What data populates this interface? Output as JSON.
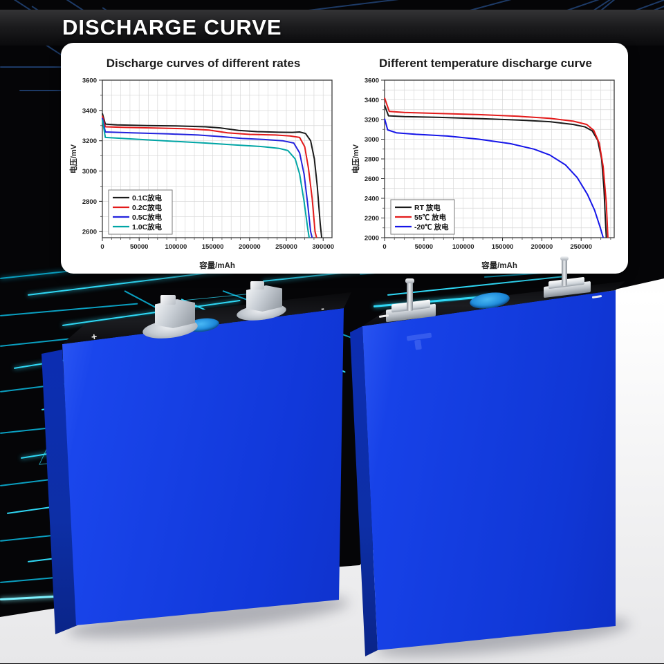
{
  "page_title": "DISCHARGE CURVE",
  "colors": {
    "accent_cyan": "#2fd8f5",
    "accent_navy": "#1d3a66",
    "panel_bg": "#ffffff",
    "battery_blue": "#1742e8",
    "battery_top_black": "#121316",
    "fill_port_blue": "#1e8ada",
    "floor_white": "#f4f4f6"
  },
  "batteries": {
    "left": {
      "plus_label": "+",
      "minus_label": "-"
    },
    "right": {
      "polarity_marks": "dashes"
    }
  },
  "chart_data": [
    {
      "type": "line",
      "title": "Discharge curves of different rates",
      "xlabel": "容量/mAh",
      "ylabel": "电压/mV",
      "xlim": [
        0,
        312000
      ],
      "ylim": [
        2560,
        3600
      ],
      "xticks": [
        0,
        50000,
        100000,
        150000,
        200000,
        250000,
        300000
      ],
      "yticks": [
        2600,
        2800,
        3000,
        3200,
        3400,
        3600
      ],
      "grid": {
        "x_step": 12500,
        "y_step": 100,
        "on": true
      },
      "legend_position": "bottom-left",
      "series": [
        {
          "name": "0.1C放电",
          "color": "#1a1a1a",
          "points": [
            [
              0,
              3380
            ],
            [
              4000,
              3310
            ],
            [
              20000,
              3305
            ],
            [
              60000,
              3300
            ],
            [
              100000,
              3298
            ],
            [
              140000,
              3292
            ],
            [
              160000,
              3285
            ],
            [
              185000,
              3268
            ],
            [
              210000,
              3260
            ],
            [
              240000,
              3256
            ],
            [
              258000,
              3255
            ],
            [
              268000,
              3258
            ],
            [
              276000,
              3248
            ],
            [
              283000,
              3200
            ],
            [
              288000,
              3080
            ],
            [
              292000,
              2900
            ],
            [
              296000,
              2650
            ],
            [
              298000,
              2560
            ]
          ]
        },
        {
          "name": "0.2C放电",
          "color": "#e31a1a",
          "points": [
            [
              0,
              3365
            ],
            [
              4000,
              3292
            ],
            [
              30000,
              3288
            ],
            [
              70000,
              3284
            ],
            [
              110000,
              3280
            ],
            [
              145000,
              3270
            ],
            [
              170000,
              3252
            ],
            [
              200000,
              3242
            ],
            [
              235000,
              3238
            ],
            [
              255000,
              3232
            ],
            [
              268000,
              3222
            ],
            [
              275000,
              3160
            ],
            [
              280000,
              3020
            ],
            [
              285000,
              2820
            ],
            [
              289000,
              2600
            ],
            [
              291000,
              2560
            ]
          ]
        },
        {
          "name": "0.5C放电",
          "color": "#2222dd",
          "points": [
            [
              0,
              3350
            ],
            [
              4000,
              3258
            ],
            [
              40000,
              3252
            ],
            [
              90000,
              3245
            ],
            [
              130000,
              3238
            ],
            [
              160000,
              3228
            ],
            [
              190000,
              3215
            ],
            [
              220000,
              3208
            ],
            [
              245000,
              3200
            ],
            [
              260000,
              3185
            ],
            [
              268000,
              3120
            ],
            [
              274000,
              2980
            ],
            [
              279000,
              2780
            ],
            [
              283000,
              2600
            ],
            [
              285000,
              2560
            ]
          ]
        },
        {
          "name": "1.0C放电",
          "color": "#00a5a5",
          "points": [
            [
              0,
              3340
            ],
            [
              4000,
              3222
            ],
            [
              40000,
              3212
            ],
            [
              90000,
              3198
            ],
            [
              140000,
              3185
            ],
            [
              180000,
              3172
            ],
            [
              215000,
              3162
            ],
            [
              240000,
              3150
            ],
            [
              252000,
              3135
            ],
            [
              262000,
              3080
            ],
            [
              268000,
              2980
            ],
            [
              274000,
              2800
            ],
            [
              279000,
              2620
            ],
            [
              281000,
              2560
            ]
          ]
        }
      ]
    },
    {
      "type": "line",
      "title": "Different temperature discharge curve",
      "xlabel": "容量/mAh",
      "ylabel": "电压/mV",
      "xlim": [
        0,
        292000
      ],
      "ylim": [
        2000,
        3600
      ],
      "xticks": [
        0,
        50000,
        100000,
        150000,
        200000,
        250000
      ],
      "yticks": [
        2000,
        2200,
        2400,
        2600,
        2800,
        3000,
        3200,
        3400,
        3600
      ],
      "grid": {
        "x_step": 12500,
        "y_step": 100,
        "on": true
      },
      "legend_position": "bottom-left",
      "series": [
        {
          "name": "RT 放电",
          "color": "#1a1a1a",
          "points": [
            [
              0,
              3345
            ],
            [
              5000,
              3238
            ],
            [
              25000,
              3230
            ],
            [
              70000,
              3222
            ],
            [
              120000,
              3210
            ],
            [
              170000,
              3195
            ],
            [
              210000,
              3178
            ],
            [
              240000,
              3150
            ],
            [
              255000,
              3125
            ],
            [
              264000,
              3085
            ],
            [
              271000,
              2990
            ],
            [
              276000,
              2800
            ],
            [
              279000,
              2500
            ],
            [
              281000,
              2150
            ],
            [
              282000,
              2000
            ]
          ]
        },
        {
          "name": "55℃ 放电",
          "color": "#e31a1a",
          "points": [
            [
              0,
              3420
            ],
            [
              6000,
              3282
            ],
            [
              25000,
              3272
            ],
            [
              70000,
              3262
            ],
            [
              120000,
              3250
            ],
            [
              170000,
              3233
            ],
            [
              210000,
              3212
            ],
            [
              240000,
              3183
            ],
            [
              257000,
              3150
            ],
            [
              266000,
              3090
            ],
            [
              273000,
              2960
            ],
            [
              278000,
              2720
            ],
            [
              282000,
              2350
            ],
            [
              284000,
              2000
            ]
          ]
        },
        {
          "name": "-20℃ 放电",
          "color": "#1515e8",
          "points": [
            [
              0,
              3210
            ],
            [
              4000,
              3095
            ],
            [
              15000,
              3065
            ],
            [
              40000,
              3050
            ],
            [
              80000,
              3032
            ],
            [
              120000,
              3000
            ],
            [
              160000,
              2955
            ],
            [
              190000,
              2900
            ],
            [
              210000,
              2840
            ],
            [
              230000,
              2740
            ],
            [
              245000,
              2610
            ],
            [
              258000,
              2440
            ],
            [
              267000,
              2280
            ],
            [
              274000,
              2110
            ],
            [
              278000,
              2000
            ]
          ]
        }
      ]
    }
  ]
}
